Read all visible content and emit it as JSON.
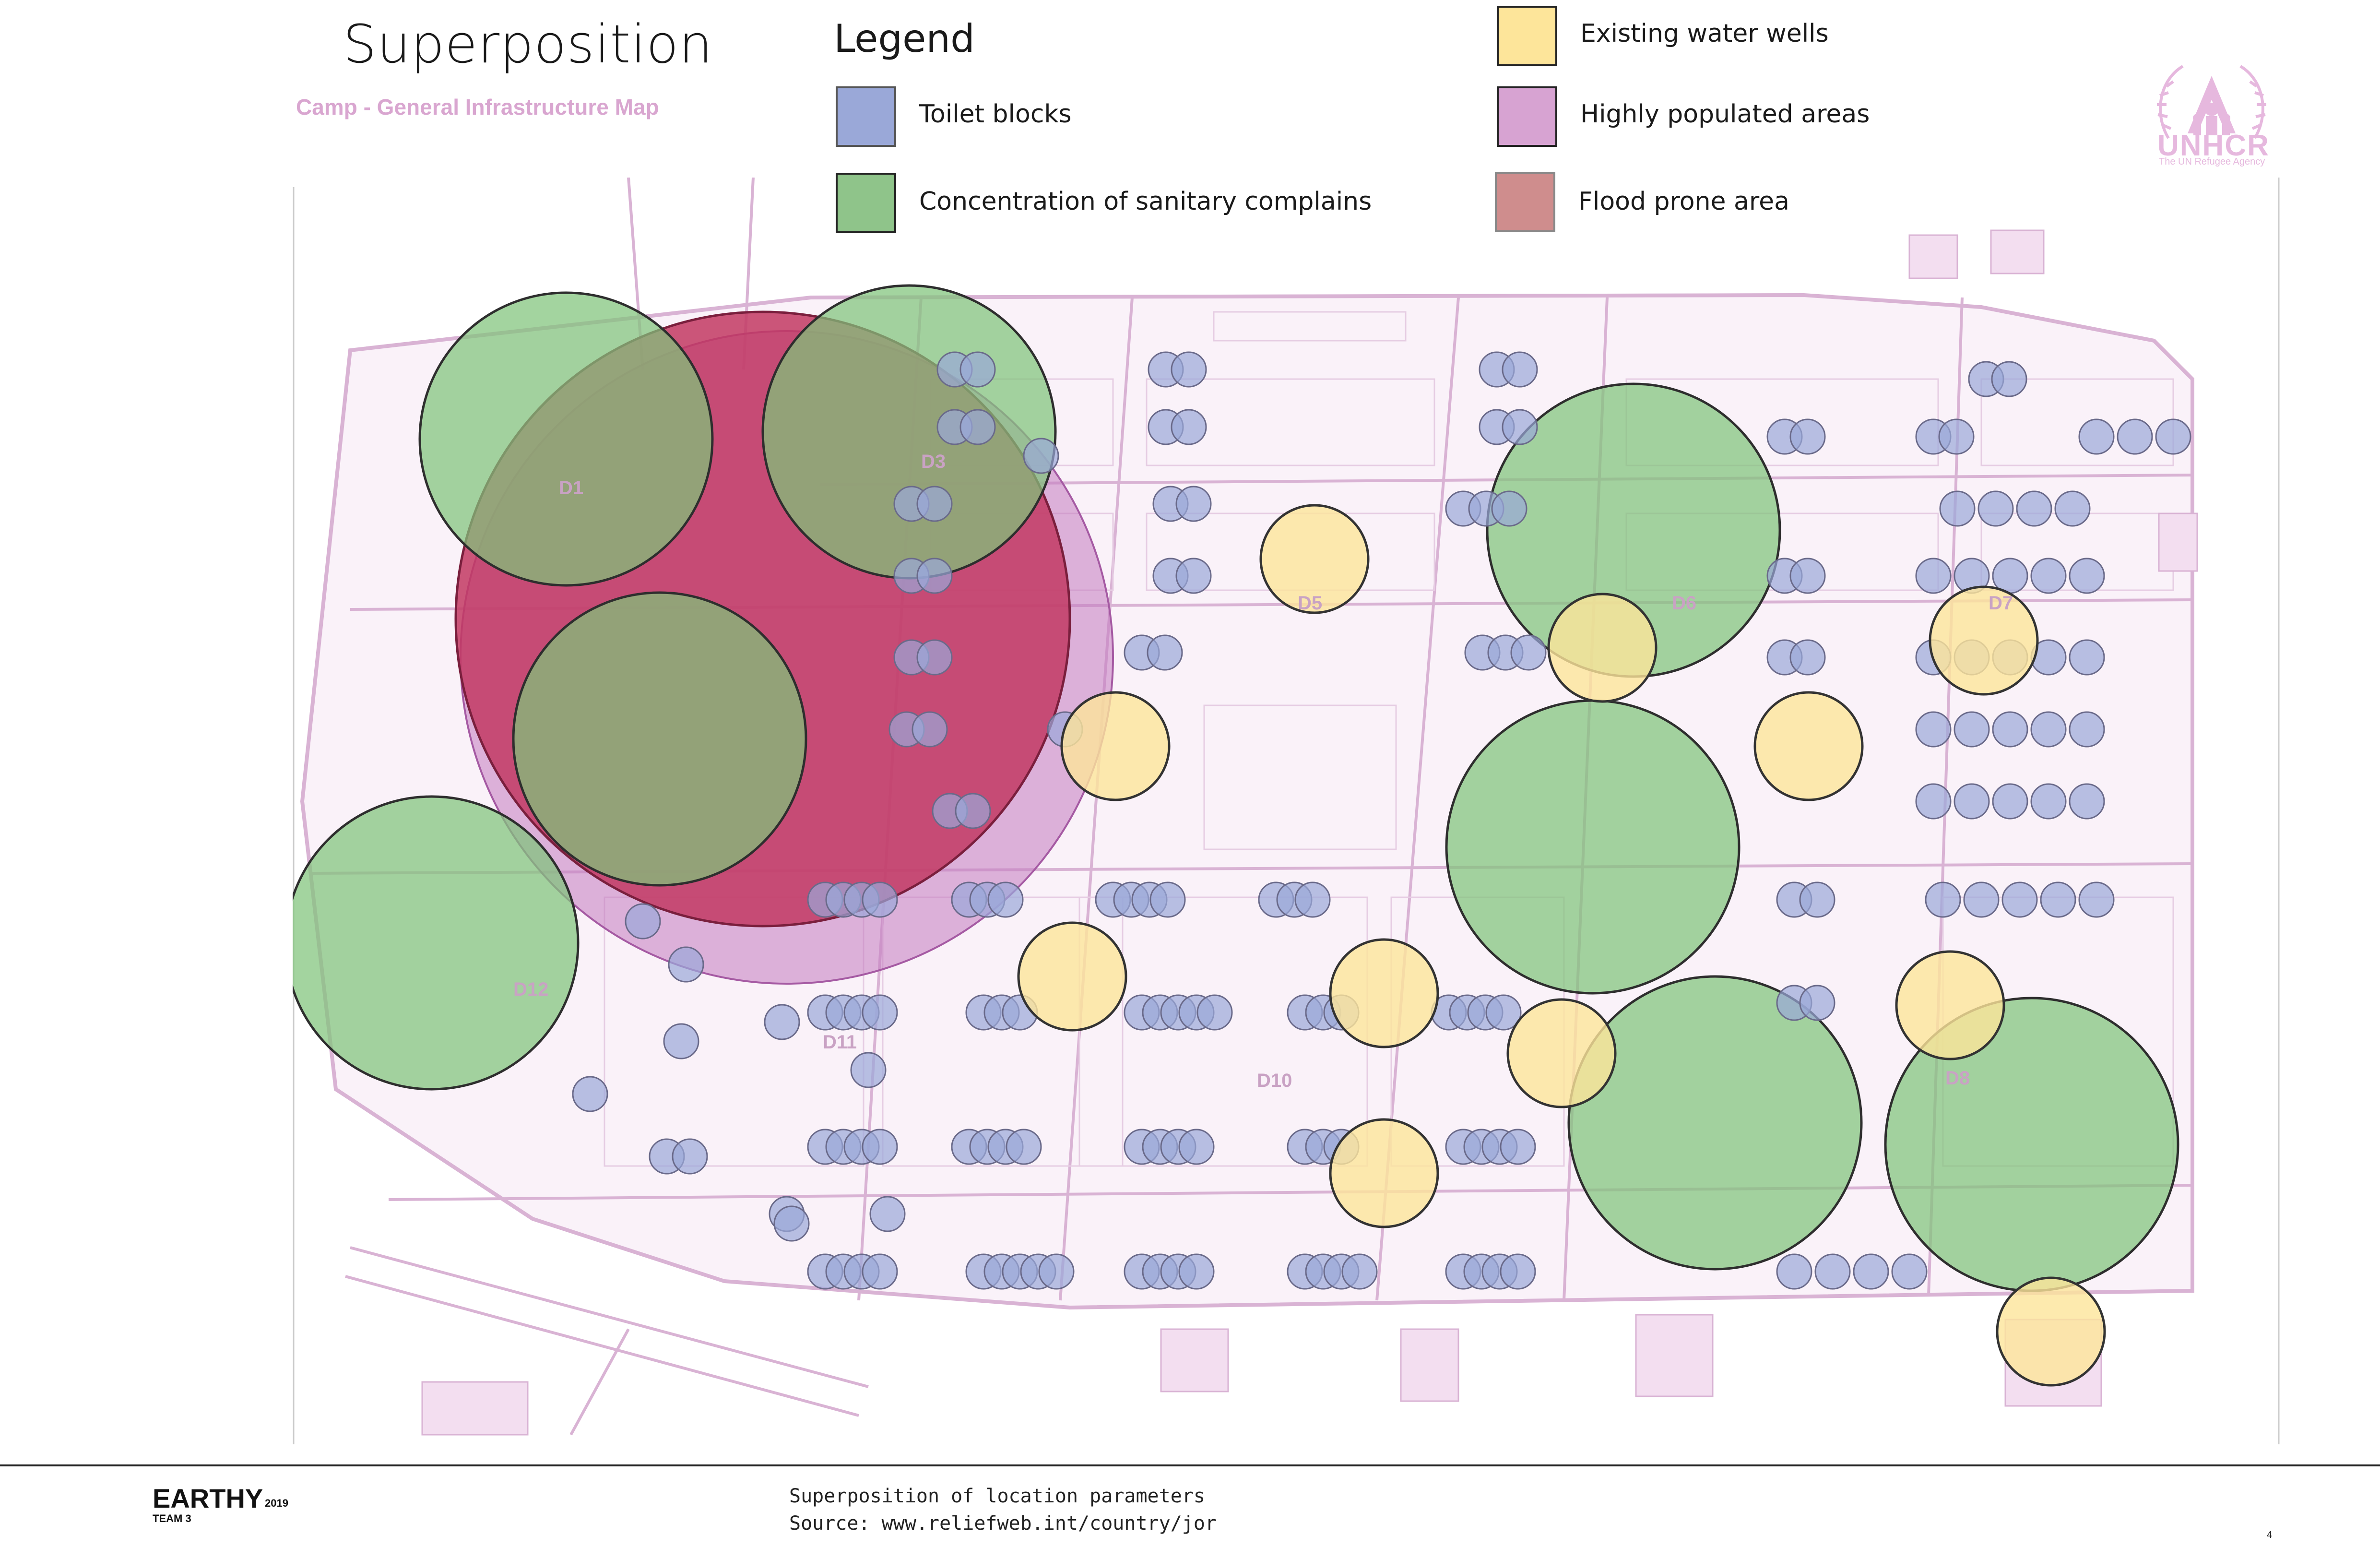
{
  "header": {
    "title": "Superposition",
    "subtitle": "Camp - General Infrastructure Map"
  },
  "legend": {
    "title": "Legend",
    "items": [
      {
        "label": "Toilet blocks",
        "color": "#9aa8d8"
      },
      {
        "label": "Concentration of sanitary complains",
        "color": "#8fc48a"
      },
      {
        "label": "Existing water wells",
        "color": "#fde59a"
      },
      {
        "label": "Highly populated areas",
        "color": "#d7a3d2"
      },
      {
        "label": "Flood prone area",
        "color": "#cf8d8d"
      }
    ]
  },
  "logo": {
    "name": "UNHCR",
    "tagline": "The UN Refugee Agency",
    "icon": "unhcr-emblem-icon"
  },
  "map": {
    "district_labels": [
      "D1",
      "D3",
      "D5",
      "D6",
      "D7",
      "D8",
      "D10",
      "D11",
      "D12"
    ],
    "colors": {
      "toilet": "#9aa8d8",
      "sanitary": "#8fc48a",
      "well": "#fde59a",
      "populated": "#c27ac0",
      "flood": "#c23a63",
      "base_lines": "#d9b3d4"
    }
  },
  "footer": {
    "brand": "EARTHY",
    "year": "2019",
    "team": "TEAM 3",
    "description": "Superposition of location parameters",
    "source": "Source: www.reliefweb.int/country/jor",
    "page_number": "4"
  }
}
